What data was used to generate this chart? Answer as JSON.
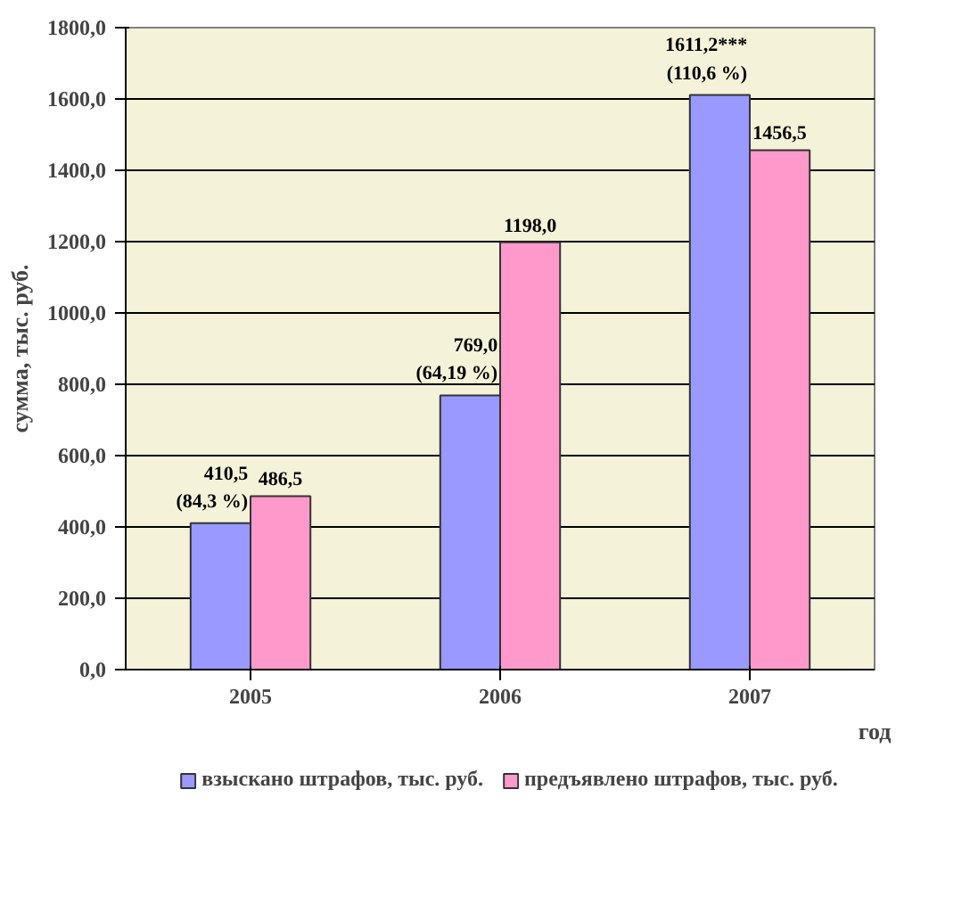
{
  "chart_data": {
    "type": "bar",
    "xlabel": "год",
    "ylabel": "сумма, тыс. руб.",
    "categories": [
      "2005",
      "2006",
      "2007"
    ],
    "series": [
      {
        "name": "взыскано штрафов, тыс. руб.",
        "color": "#9999ff",
        "values": [
          410.5,
          769.0,
          1611.2
        ],
        "value_labels": [
          "410,5\n(84,3 %)",
          "769,0\n(64,19 %)",
          "1611,2***\n(110,6 %)"
        ]
      },
      {
        "name": "предъявлено штрафов, тыс. руб.",
        "color": "#ff99cc",
        "values": [
          486.5,
          1198.0,
          1456.5
        ],
        "value_labels": [
          "486,5",
          "1198,0",
          "1456,5"
        ]
      }
    ],
    "ylim": [
      0,
      1800
    ],
    "yticks": [
      {
        "value": 0,
        "label": "0,0"
      },
      {
        "value": 200,
        "label": "200,0"
      },
      {
        "value": 400,
        "label": "400,0"
      },
      {
        "value": 600,
        "label": "600,0"
      },
      {
        "value": 800,
        "label": "800,0"
      },
      {
        "value": 1000,
        "label": "1000,0"
      },
      {
        "value": 1200,
        "label": "1200,0"
      },
      {
        "value": 1400,
        "label": "1400,0"
      },
      {
        "value": 1600,
        "label": "1600,0"
      },
      {
        "value": 1800,
        "label": "1800,0"
      }
    ],
    "grid": "y",
    "legend": "bottom"
  }
}
